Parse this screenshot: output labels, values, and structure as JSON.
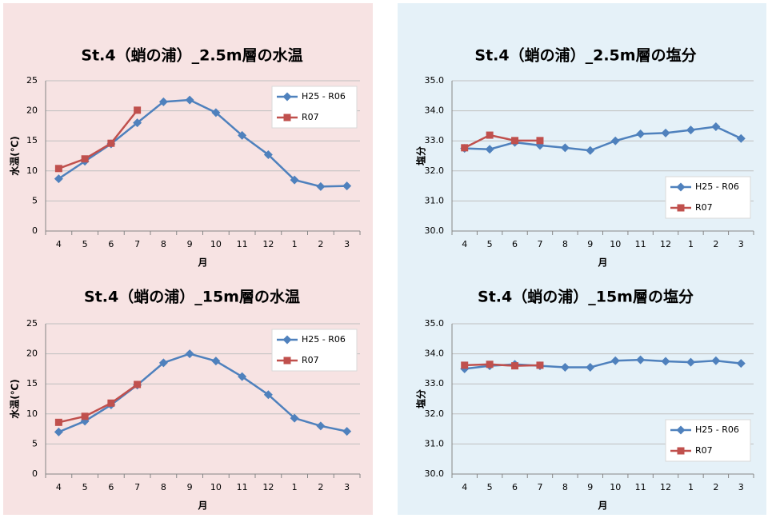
{
  "chart_data": [
    {
      "type": "line",
      "title": "St.4（蛸の浦）_2.5m層の水温",
      "ylabel": "水温(℃)",
      "xlabel": "月",
      "categories": [
        "4",
        "5",
        "6",
        "7",
        "8",
        "9",
        "10",
        "11",
        "12",
        "1",
        "2",
        "3"
      ],
      "series": [
        {
          "name": "H25 - R06",
          "color": "#4f81bd",
          "marker": "diamond",
          "values": [
            8.7,
            11.6,
            14.5,
            18.0,
            21.5,
            21.8,
            19.7,
            15.9,
            12.7,
            8.5,
            7.4,
            7.5
          ]
        },
        {
          "name": "R07",
          "color": "#c0504d",
          "marker": "square",
          "values": [
            10.4,
            12.0,
            14.6,
            20.1,
            null,
            null,
            null,
            null,
            null,
            null,
            null,
            null
          ]
        }
      ],
      "ylim": [
        0,
        25
      ],
      "yticks": [
        0,
        5,
        10,
        15,
        20,
        25
      ],
      "grid": true,
      "legend": "upper right"
    },
    {
      "type": "line",
      "title": "St.4（蛸の浦）_2.5m層の塩分",
      "ylabel": "塩分",
      "xlabel": "月",
      "categories": [
        "4",
        "5",
        "6",
        "7",
        "8",
        "9",
        "10",
        "11",
        "12",
        "1",
        "2",
        "3"
      ],
      "series": [
        {
          "name": "H25 - R06",
          "color": "#4f81bd",
          "marker": "diamond",
          "values": [
            32.75,
            32.72,
            32.95,
            32.85,
            32.77,
            32.68,
            33.0,
            33.23,
            33.26,
            33.36,
            33.47,
            33.08
          ]
        },
        {
          "name": "R07",
          "color": "#c0504d",
          "marker": "square",
          "values": [
            32.77,
            33.19,
            33.01,
            33.01,
            null,
            null,
            null,
            null,
            null,
            null,
            null,
            null
          ]
        }
      ],
      "ylim": [
        30,
        35
      ],
      "yticks": [
        {
          "value": 30,
          "label": "30.0"
        },
        {
          "value": 31,
          "label": "31.0"
        },
        {
          "value": 32,
          "label": "32.0"
        },
        {
          "value": 33,
          "label": "33.0"
        },
        {
          "value": 34,
          "label": "34.0"
        },
        {
          "value": 35,
          "label": "35.0"
        }
      ],
      "grid": true,
      "legend": "lower right"
    },
    {
      "type": "line",
      "title": "St.4（蛸の浦）_15m層の水温",
      "ylabel": "水温(℃)",
      "xlabel": "月",
      "categories": [
        "4",
        "5",
        "6",
        "7",
        "8",
        "9",
        "10",
        "11",
        "12",
        "1",
        "2",
        "3"
      ],
      "series": [
        {
          "name": "H25 - R06",
          "color": "#4f81bd",
          "marker": "diamond",
          "values": [
            7.0,
            8.8,
            11.5,
            14.8,
            18.5,
            20.0,
            18.8,
            16.2,
            13.2,
            9.3,
            8.0,
            7.1
          ]
        },
        {
          "name": "R07",
          "color": "#c0504d",
          "marker": "square",
          "values": [
            8.6,
            9.6,
            11.8,
            14.9,
            null,
            null,
            null,
            null,
            null,
            null,
            null,
            null
          ]
        }
      ],
      "ylim": [
        0,
        25
      ],
      "yticks": [
        0,
        5,
        10,
        15,
        20,
        25
      ],
      "grid": true,
      "legend": "upper right"
    },
    {
      "type": "line",
      "title": "St.4（蛸の浦）_15m層の塩分",
      "ylabel": "塩分",
      "xlabel": "月",
      "categories": [
        "4",
        "5",
        "6",
        "7",
        "8",
        "9",
        "10",
        "11",
        "12",
        "1",
        "2",
        "3"
      ],
      "series": [
        {
          "name": "H25 - R06",
          "color": "#4f81bd",
          "marker": "diamond",
          "values": [
            33.5,
            33.6,
            33.65,
            33.6,
            33.55,
            33.55,
            33.77,
            33.8,
            33.75,
            33.72,
            33.77,
            33.68
          ]
        },
        {
          "name": "R07",
          "color": "#c0504d",
          "marker": "square",
          "values": [
            33.62,
            33.65,
            33.6,
            33.62,
            null,
            null,
            null,
            null,
            null,
            null,
            null,
            null
          ]
        }
      ],
      "ylim": [
        30,
        35
      ],
      "yticks": [
        {
          "value": 30,
          "label": "30.0"
        },
        {
          "value": 31,
          "label": "31.0"
        },
        {
          "value": 32,
          "label": "32.0"
        },
        {
          "value": 33,
          "label": "33.0"
        },
        {
          "value": 34,
          "label": "34.0"
        },
        {
          "value": 35,
          "label": "35.0"
        }
      ],
      "grid": true,
      "legend": "lower right"
    }
  ]
}
